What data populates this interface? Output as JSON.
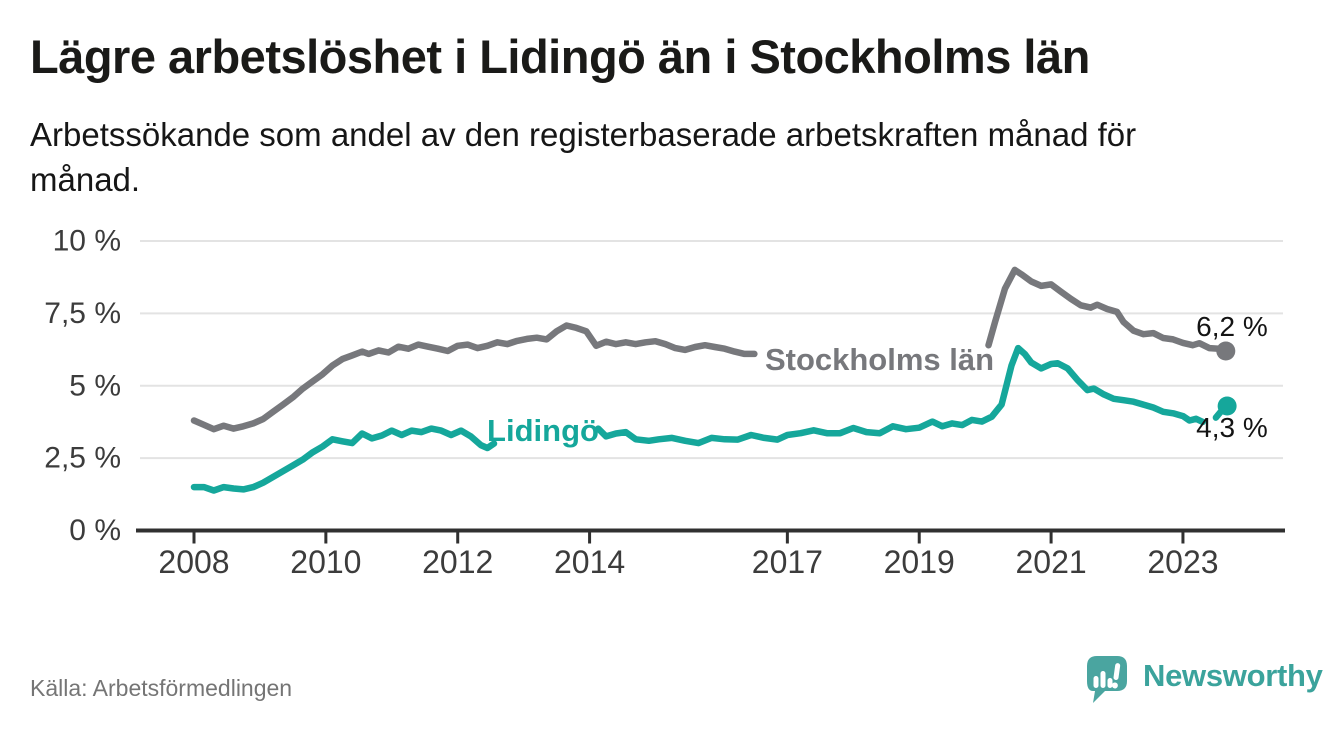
{
  "colors": {
    "stockholm_line": "#77787C",
    "lidingo_line": "#15A79B",
    "axis": "#303030",
    "grid": "#E3E3E3",
    "tick_text": "#3C3C3C",
    "value_label_text": "#141414",
    "logo_bubble": "#4AA5A0",
    "logo_text": "#3BA39C",
    "source_text": "#757575"
  },
  "footer": {
    "logo_text": "Newsworthy"
  },
  "chart_data": {
    "type": "line",
    "title": "Lägre arbetslöshet i Lidingö än i Stockholms län",
    "subtitle": "Arbetssökande som andel av den registerbaserade arbetskraften månad för månad.",
    "source": "Källa: Arbetsförmedlingen",
    "grid": "horizontal",
    "legend_position": "inline-labels",
    "x_axis": {
      "unit": "year",
      "range_start": 2007.2,
      "range_end": 2024.5,
      "ticks": [
        {
          "label": "2008",
          "value": 2008
        },
        {
          "label": "2010",
          "value": 2010
        },
        {
          "label": "2012",
          "value": 2012
        },
        {
          "label": "2014",
          "value": 2014
        },
        {
          "label": "2017",
          "value": 2017
        },
        {
          "label": "2019",
          "value": 2019
        },
        {
          "label": "2021",
          "value": 2021
        },
        {
          "label": "2023",
          "value": 2023
        }
      ]
    },
    "y_axis": {
      "unit": "%",
      "min": 0,
      "max": 10,
      "ticks": [
        {
          "label": "0 %",
          "value": 0
        },
        {
          "label": "2,5 %",
          "value": 2.5
        },
        {
          "label": "5 %",
          "value": 5
        },
        {
          "label": "7,5 %",
          "value": 7.5
        },
        {
          "label": "10 %",
          "value": 10
        }
      ]
    },
    "series": [
      {
        "name": "Stockholms län",
        "slug": "stockholm",
        "color": "#77787C",
        "label_pos": {
          "x": 2016.66,
          "y": 5.54
        },
        "end_point": {
          "x": 2023.65,
          "y": 6.2
        },
        "end_label": "6,2 %",
        "end_label_pos": {
          "x": 2023.2,
          "y": 6.72
        },
        "segments": [
          [
            [
              2008.0,
              3.8
            ],
            [
              2008.15,
              3.65
            ],
            [
              2008.3,
              3.5
            ],
            [
              2008.45,
              3.62
            ],
            [
              2008.6,
              3.52
            ],
            [
              2008.75,
              3.6
            ],
            [
              2008.9,
              3.7
            ],
            [
              2009.05,
              3.85
            ],
            [
              2009.2,
              4.1
            ],
            [
              2009.35,
              4.35
            ],
            [
              2009.5,
              4.6
            ],
            [
              2009.65,
              4.9
            ],
            [
              2009.8,
              5.15
            ],
            [
              2009.95,
              5.4
            ],
            [
              2010.1,
              5.7
            ],
            [
              2010.25,
              5.92
            ],
            [
              2010.4,
              6.05
            ],
            [
              2010.55,
              6.18
            ],
            [
              2010.65,
              6.1
            ],
            [
              2010.8,
              6.22
            ],
            [
              2010.95,
              6.15
            ],
            [
              2011.1,
              6.35
            ],
            [
              2011.25,
              6.28
            ],
            [
              2011.4,
              6.42
            ],
            [
              2011.55,
              6.35
            ],
            [
              2011.7,
              6.28
            ],
            [
              2011.85,
              6.2
            ],
            [
              2012.0,
              6.38
            ],
            [
              2012.15,
              6.42
            ],
            [
              2012.3,
              6.3
            ],
            [
              2012.45,
              6.38
            ],
            [
              2012.6,
              6.5
            ],
            [
              2012.75,
              6.44
            ],
            [
              2012.9,
              6.55
            ],
            [
              2013.05,
              6.62
            ],
            [
              2013.2,
              6.66
            ],
            [
              2013.35,
              6.6
            ],
            [
              2013.5,
              6.88
            ],
            [
              2013.65,
              7.08
            ],
            [
              2013.8,
              7.0
            ],
            [
              2013.95,
              6.88
            ],
            [
              2014.1,
              6.38
            ],
            [
              2014.25,
              6.52
            ],
            [
              2014.4,
              6.44
            ],
            [
              2014.55,
              6.5
            ],
            [
              2014.7,
              6.44
            ],
            [
              2014.85,
              6.5
            ],
            [
              2015.0,
              6.54
            ],
            [
              2015.15,
              6.44
            ],
            [
              2015.3,
              6.3
            ],
            [
              2015.45,
              6.24
            ],
            [
              2015.6,
              6.34
            ],
            [
              2015.75,
              6.4
            ],
            [
              2015.9,
              6.34
            ],
            [
              2016.05,
              6.28
            ],
            [
              2016.2,
              6.18
            ],
            [
              2016.35,
              6.1
            ],
            [
              2016.5,
              6.1
            ]
          ],
          [
            [
              2020.05,
              6.4
            ],
            [
              2020.15,
              7.2
            ],
            [
              2020.3,
              8.35
            ],
            [
              2020.45,
              9.0
            ],
            [
              2020.55,
              8.85
            ],
            [
              2020.7,
              8.6
            ],
            [
              2020.85,
              8.45
            ],
            [
              2021.0,
              8.5
            ],
            [
              2021.15,
              8.25
            ],
            [
              2021.3,
              8.0
            ],
            [
              2021.45,
              7.78
            ],
            [
              2021.6,
              7.7
            ],
            [
              2021.7,
              7.8
            ],
            [
              2021.85,
              7.65
            ],
            [
              2022.0,
              7.55
            ],
            [
              2022.1,
              7.2
            ],
            [
              2022.25,
              6.9
            ],
            [
              2022.4,
              6.78
            ],
            [
              2022.55,
              6.82
            ],
            [
              2022.7,
              6.65
            ],
            [
              2022.85,
              6.6
            ],
            [
              2023.0,
              6.48
            ],
            [
              2023.15,
              6.4
            ],
            [
              2023.25,
              6.47
            ],
            [
              2023.4,
              6.3
            ],
            [
              2023.55,
              6.28
            ],
            [
              2023.65,
              6.2
            ]
          ]
        ]
      },
      {
        "name": "Lidingö",
        "slug": "lidingo",
        "color": "#15A79B",
        "label_pos": {
          "x": 2012.445,
          "y": 3.09
        },
        "end_point": {
          "x": 2023.67,
          "y": 4.3
        },
        "end_label": "4,3 %",
        "end_label_pos": {
          "x": 2023.2,
          "y": 3.23
        },
        "segments": [
          [
            [
              2008.0,
              1.5
            ],
            [
              2008.15,
              1.5
            ],
            [
              2008.3,
              1.38
            ],
            [
              2008.45,
              1.5
            ],
            [
              2008.6,
              1.45
            ],
            [
              2008.75,
              1.42
            ],
            [
              2008.9,
              1.5
            ],
            [
              2009.05,
              1.65
            ],
            [
              2009.2,
              1.85
            ],
            [
              2009.35,
              2.05
            ],
            [
              2009.5,
              2.25
            ],
            [
              2009.65,
              2.45
            ],
            [
              2009.8,
              2.7
            ],
            [
              2009.95,
              2.9
            ],
            [
              2010.1,
              3.15
            ],
            [
              2010.25,
              3.08
            ],
            [
              2010.4,
              3.02
            ],
            [
              2010.55,
              3.35
            ],
            [
              2010.7,
              3.18
            ],
            [
              2010.85,
              3.28
            ],
            [
              2011.0,
              3.45
            ],
            [
              2011.15,
              3.3
            ],
            [
              2011.3,
              3.45
            ],
            [
              2011.45,
              3.4
            ],
            [
              2011.6,
              3.52
            ],
            [
              2011.75,
              3.45
            ],
            [
              2011.9,
              3.3
            ],
            [
              2012.05,
              3.45
            ],
            [
              2012.2,
              3.25
            ],
            [
              2012.35,
              2.95
            ],
            [
              2012.45,
              2.85
            ],
            [
              2012.55,
              3.0
            ]
          ],
          [
            [
              2014.13,
              3.52
            ],
            [
              2014.25,
              3.25
            ],
            [
              2014.4,
              3.35
            ],
            [
              2014.55,
              3.4
            ],
            [
              2014.7,
              3.15
            ],
            [
              2014.9,
              3.1
            ],
            [
              2015.05,
              3.15
            ],
            [
              2015.25,
              3.2
            ],
            [
              2015.45,
              3.1
            ],
            [
              2015.65,
              3.02
            ],
            [
              2015.85,
              3.2
            ],
            [
              2016.05,
              3.15
            ],
            [
              2016.25,
              3.14
            ],
            [
              2016.45,
              3.3
            ],
            [
              2016.65,
              3.2
            ],
            [
              2016.85,
              3.14
            ],
            [
              2017.0,
              3.3
            ],
            [
              2017.2,
              3.36
            ],
            [
              2017.4,
              3.46
            ],
            [
              2017.6,
              3.36
            ],
            [
              2017.8,
              3.36
            ],
            [
              2018.0,
              3.54
            ],
            [
              2018.2,
              3.4
            ],
            [
              2018.4,
              3.36
            ],
            [
              2018.6,
              3.6
            ],
            [
              2018.8,
              3.5
            ],
            [
              2019.0,
              3.55
            ],
            [
              2019.2,
              3.76
            ],
            [
              2019.35,
              3.6
            ],
            [
              2019.5,
              3.7
            ],
            [
              2019.65,
              3.64
            ],
            [
              2019.8,
              3.82
            ],
            [
              2019.95,
              3.76
            ],
            [
              2020.1,
              3.93
            ],
            [
              2020.25,
              4.35
            ],
            [
              2020.4,
              5.7
            ],
            [
              2020.5,
              6.3
            ],
            [
              2020.6,
              6.1
            ],
            [
              2020.7,
              5.8
            ],
            [
              2020.85,
              5.6
            ],
            [
              2021.0,
              5.75
            ],
            [
              2021.1,
              5.78
            ],
            [
              2021.25,
              5.6
            ],
            [
              2021.4,
              5.2
            ],
            [
              2021.55,
              4.85
            ],
            [
              2021.65,
              4.9
            ],
            [
              2021.8,
              4.7
            ],
            [
              2021.95,
              4.55
            ],
            [
              2022.1,
              4.5
            ],
            [
              2022.25,
              4.45
            ],
            [
              2022.4,
              4.35
            ],
            [
              2022.55,
              4.25
            ],
            [
              2022.7,
              4.1
            ],
            [
              2022.85,
              4.05
            ],
            [
              2023.0,
              3.95
            ],
            [
              2023.1,
              3.8
            ],
            [
              2023.2,
              3.86
            ],
            [
              2023.3,
              3.75
            ]
          ],
          [
            [
              2023.5,
              3.9
            ],
            [
              2023.58,
              4.12
            ],
            [
              2023.67,
              4.3
            ]
          ]
        ]
      }
    ]
  }
}
